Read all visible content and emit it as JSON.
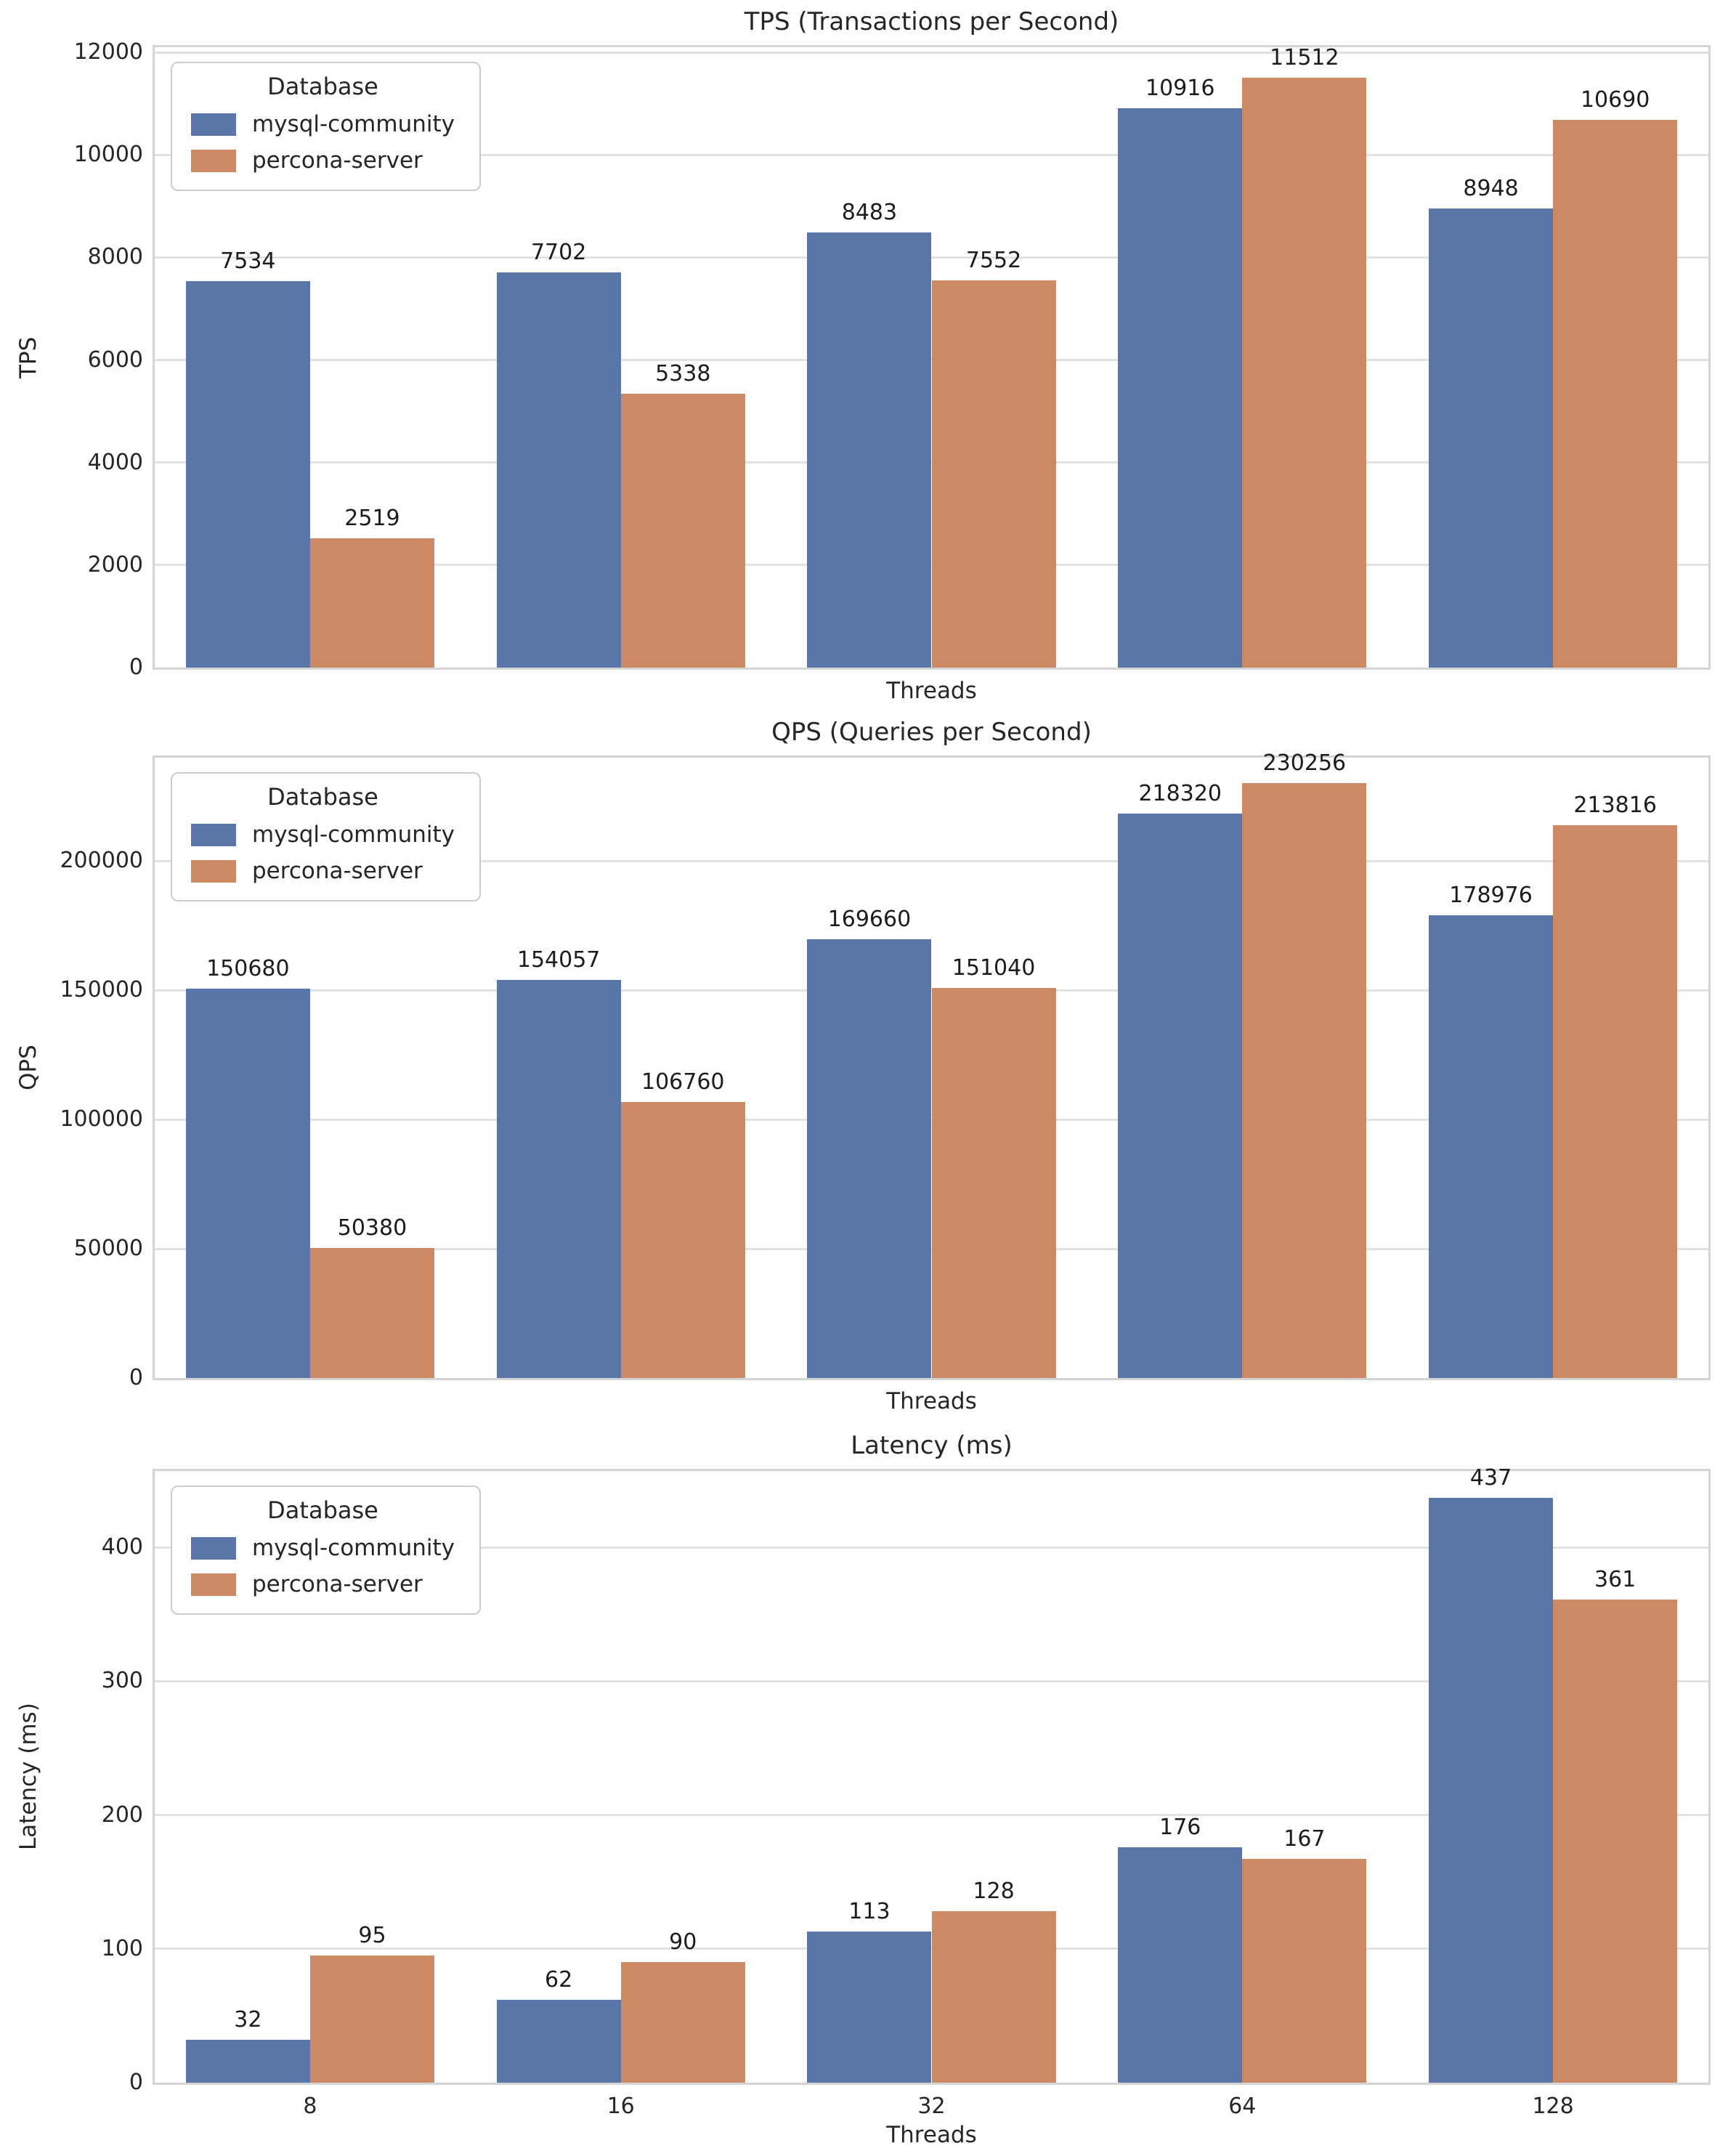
{
  "figure": {
    "background": "#ffffff",
    "text_color": "#262626",
    "grid_color": "#e2e2e2",
    "spine_color": "#d4d4d4"
  },
  "legend": {
    "title": "Database",
    "series": [
      {
        "label": "mysql-community",
        "color": "#5876a8"
      },
      {
        "label": "percona-server",
        "color": "#cc8963"
      }
    ]
  },
  "chart_data": [
    {
      "type": "bar",
      "title": "TPS (Transactions per Second)",
      "xlabel": "Threads",
      "ylabel": "TPS",
      "categories": [
        "8",
        "16",
        "32",
        "64",
        "128"
      ],
      "series": [
        {
          "name": "mysql-community",
          "values": [
            7534,
            7702,
            8483,
            10916,
            8948
          ]
        },
        {
          "name": "percona-server",
          "values": [
            2519,
            5338,
            7552,
            11512,
            10690
          ]
        }
      ],
      "yticks": [
        0,
        2000,
        4000,
        6000,
        8000,
        10000,
        12000
      ],
      "ylim": [
        0,
        12100
      ],
      "grid": true,
      "legend_position": "upper-left",
      "show_x_tick_labels": false
    },
    {
      "type": "bar",
      "title": "QPS (Queries per Second)",
      "xlabel": "Threads",
      "ylabel": "QPS",
      "categories": [
        "8",
        "16",
        "32",
        "64",
        "128"
      ],
      "series": [
        {
          "name": "mysql-community",
          "values": [
            150680,
            154057,
            169660,
            218320,
            178976
          ]
        },
        {
          "name": "percona-server",
          "values": [
            50380,
            106760,
            151040,
            230256,
            213816
          ]
        }
      ],
      "yticks": [
        0,
        50000,
        100000,
        150000,
        200000
      ],
      "ylim": [
        0,
        240000
      ],
      "grid": true,
      "legend_position": "upper-left",
      "show_x_tick_labels": false
    },
    {
      "type": "bar",
      "title": "Latency (ms)",
      "xlabel": "Threads",
      "ylabel": "Latency (ms)",
      "categories": [
        "8",
        "16",
        "32",
        "64",
        "128"
      ],
      "series": [
        {
          "name": "mysql-community",
          "values": [
            32,
            62,
            113,
            176,
            437
          ]
        },
        {
          "name": "percona-server",
          "values": [
            95,
            90,
            128,
            167,
            361
          ]
        }
      ],
      "yticks": [
        0,
        100,
        200,
        300,
        400
      ],
      "ylim": [
        0,
        457
      ],
      "grid": true,
      "legend_position": "upper-left",
      "show_x_tick_labels": true
    }
  ]
}
